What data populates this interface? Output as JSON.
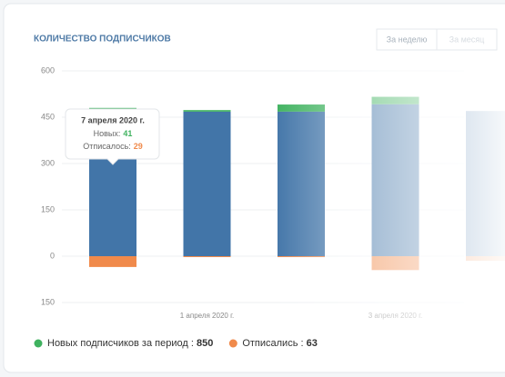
{
  "chart_data": {
    "type": "stacked_bar",
    "title": "КОЛИЧЕСТВО ПОДПИСЧИКОВ",
    "buttons": [
      "За неделю",
      "За месяц"
    ],
    "categories": [
      null,
      "1 апреля 2020 г.",
      null,
      "3 апреля 2020 г.",
      null
    ],
    "series": [
      {
        "color": "#4275a8",
        "values": [
          465,
          468,
          468,
          492,
          470
        ]
      },
      {
        "name": "Новых подписчиков за период",
        "color": "#3fb25f",
        "values": [
          15,
          5,
          23,
          24,
          0
        ],
        "total": 850
      },
      {
        "name": "Отписались",
        "color": "#f08a4b",
        "values": [
          -35,
          -3,
          -3,
          -45,
          -15
        ],
        "total": 63
      }
    ],
    "ylim": [
      -150,
      600
    ],
    "yticks": [
      {
        "value": -150,
        "label": "150"
      },
      0,
      150,
      300,
      450,
      600
    ],
    "grid": true,
    "tooltip": {
      "title": "7 апреля 2020 г.",
      "new_label": "Новых:",
      "new_value": 41,
      "unsub_label": "Отписалось:",
      "unsub_value": 29
    }
  }
}
